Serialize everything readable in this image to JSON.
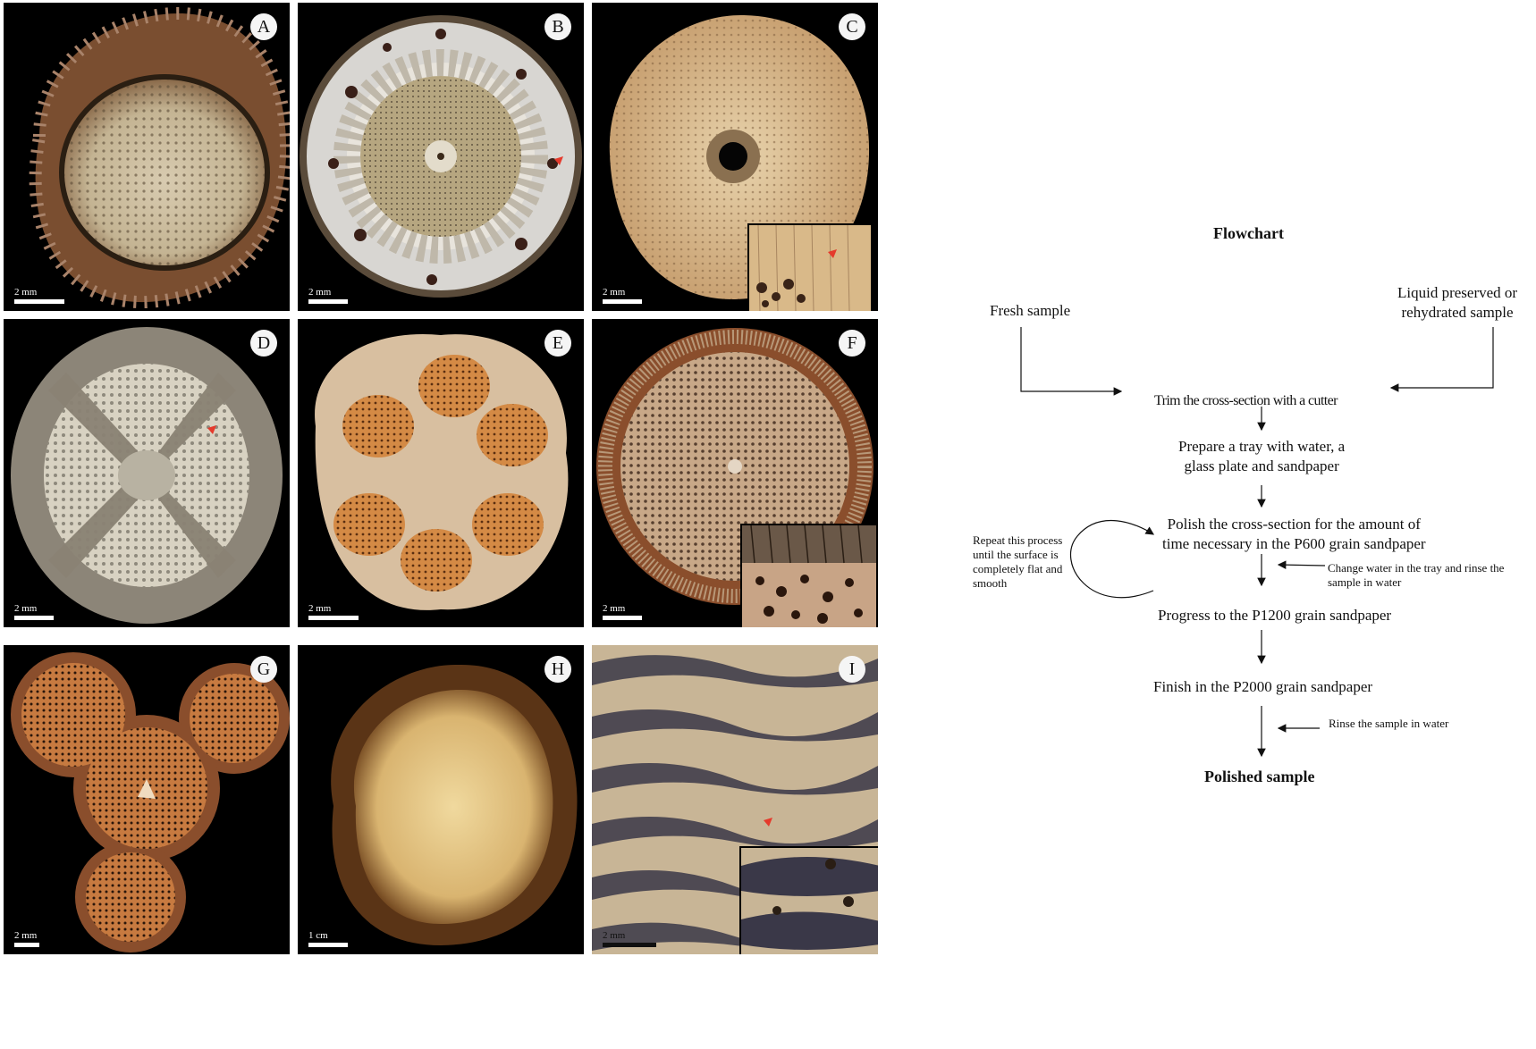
{
  "panels": [
    {
      "id": "A",
      "label": "A",
      "scale": "2 mm"
    },
    {
      "id": "B",
      "label": "B",
      "scale": "2 mm"
    },
    {
      "id": "C",
      "label": "C",
      "scale": "2 mm"
    },
    {
      "id": "D",
      "label": "D",
      "scale": "2 mm"
    },
    {
      "id": "E",
      "label": "E",
      "scale": "2 mm"
    },
    {
      "id": "F",
      "label": "F",
      "scale": "2 mm"
    },
    {
      "id": "G",
      "label": "G",
      "scale": "2 mm"
    },
    {
      "id": "H",
      "label": "H",
      "scale": "1 cm"
    },
    {
      "id": "I",
      "label": "I",
      "scale": "2 mm"
    }
  ],
  "flowchart": {
    "title": "Flowchart",
    "input_fresh": "Fresh sample",
    "input_liquid_line1": "Liquid preserved or",
    "input_liquid_line2": "rehydrated sample",
    "step_trim": "Trim the cross-section with a cutter",
    "step_tray_line1": "Prepare a tray with water, a",
    "step_tray_line2": "glass plate and sandpaper",
    "step_polish_line1": "Polish the cross-section for the amount of",
    "step_polish_line2": "time necessary in the P600 grain sandpaper",
    "repeat_line1": "Repeat this process",
    "repeat_line2": "until the surface is",
    "repeat_line3": "completely flat and",
    "repeat_line4": "smooth",
    "change_water_line1": "Change water in the tray and rinse the",
    "change_water_line2": "sample in water",
    "step_p1200": "Progress to the P1200 grain sandpaper",
    "step_p2000": "Finish in the P2000 grain sandpaper",
    "rinse": "Rinse the sample in water",
    "result": "Polished sample"
  },
  "colors": {
    "panel_bg": "#000000",
    "arrowhead": "#e53a2c"
  }
}
